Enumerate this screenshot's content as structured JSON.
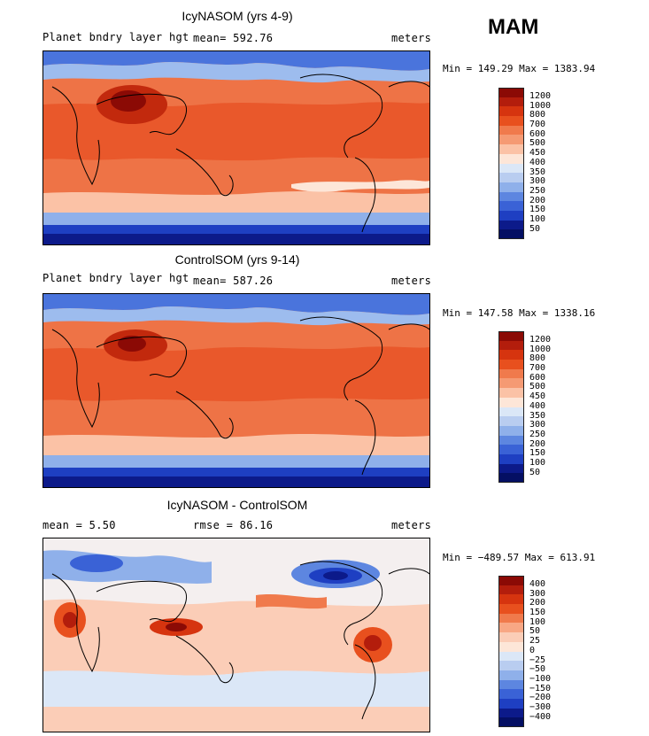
{
  "season": "MAM",
  "panels": [
    {
      "title": "IcyNASOM (yrs 4-9)",
      "left_label": "Planet bndry layer hgt",
      "mid_label": "mean=  592.76",
      "right_label": "meters",
      "minmax": "Min = 149.29 Max = 1383.94",
      "colorbar_labels": [
        "1200",
        "1000",
        "800",
        "700",
        "600",
        "500",
        "450",
        "400",
        "350",
        "300",
        "250",
        "200",
        "150",
        "100",
        "50"
      ]
    },
    {
      "title": "ControlSOM (yrs 9-14)",
      "left_label": "Planet bndry layer hgt",
      "mid_label": "mean=  587.26",
      "right_label": "meters",
      "minmax": "Min = 147.58 Max = 1338.16",
      "colorbar_labels": [
        "1200",
        "1000",
        "800",
        "700",
        "600",
        "500",
        "450",
        "400",
        "350",
        "300",
        "250",
        "200",
        "150",
        "100",
        "50"
      ]
    },
    {
      "title": "IcyNASOM - ControlSOM",
      "left_label": "mean =    5.50",
      "mid_label": "rmse =   86.16",
      "right_label": "meters",
      "minmax": "Min = −489.57 Max = 613.91",
      "colorbar_labels": [
        "400",
        "300",
        "200",
        "150",
        "100",
        "50",
        "25",
        "0",
        "−25",
        "−50",
        "−100",
        "−150",
        "−200",
        "−300",
        "−400"
      ]
    }
  ],
  "colors": {
    "abs_scale": [
      "#8b0a05",
      "#b31d0c",
      "#d6340f",
      "#e8501e",
      "#f07a4c",
      "#f59a73",
      "#fbc2a6",
      "#fde6d8",
      "#dbe7f7",
      "#b9cdf0",
      "#8fb0ea",
      "#5d86e0",
      "#3a62d6",
      "#1e3fc2",
      "#0c1a8a",
      "#040f63"
    ],
    "diff_scale": [
      "#8b0a05",
      "#b31d0c",
      "#d6340f",
      "#e8501e",
      "#f07a4c",
      "#f8a784",
      "#fbcdb7",
      "#fde6d8",
      "#dbe7f7",
      "#b9cdf0",
      "#8fb0ea",
      "#5d86e0",
      "#3a62d6",
      "#1e3fc2",
      "#0c1a8a",
      "#040f63"
    ]
  }
}
